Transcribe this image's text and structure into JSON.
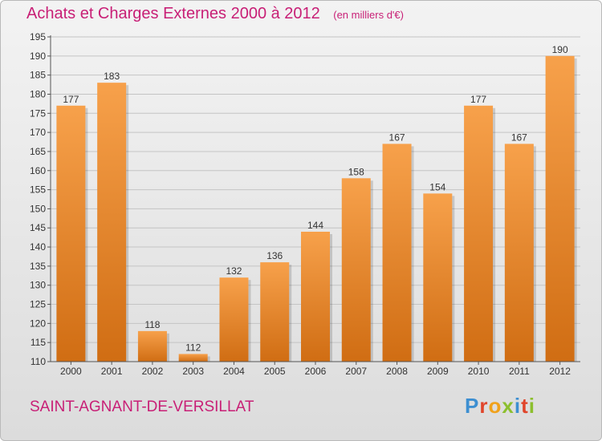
{
  "header": {
    "title": "Achats et Charges Externes 2000 à 2012",
    "unit": "(en milliers d'€)"
  },
  "footer": {
    "commune": "SAINT-AGNANT-DE-VERSILLAT",
    "logo_text": "Proxiti"
  },
  "colors": {
    "accent": "#c81f76",
    "bar_light": "#f7a14b",
    "bar_dark": "#d06d13",
    "grid": "#c4c4c4"
  },
  "chart_data": {
    "type": "bar",
    "title": "Achats et Charges Externes 2000 à 2012",
    "unit": "(en milliers d'€)",
    "categories": [
      "2000",
      "2001",
      "2002",
      "2003",
      "2004",
      "2005",
      "2006",
      "2007",
      "2008",
      "2009",
      "2010",
      "2011",
      "2012"
    ],
    "values": [
      177,
      183,
      118,
      112,
      132,
      136,
      144,
      158,
      167,
      154,
      177,
      167,
      190
    ],
    "ylim": [
      110,
      195
    ],
    "yticks": [
      110,
      115,
      120,
      125,
      130,
      135,
      140,
      145,
      150,
      155,
      160,
      165,
      170,
      175,
      180,
      185,
      190,
      195
    ],
    "grid": true,
    "data_labels": true
  }
}
